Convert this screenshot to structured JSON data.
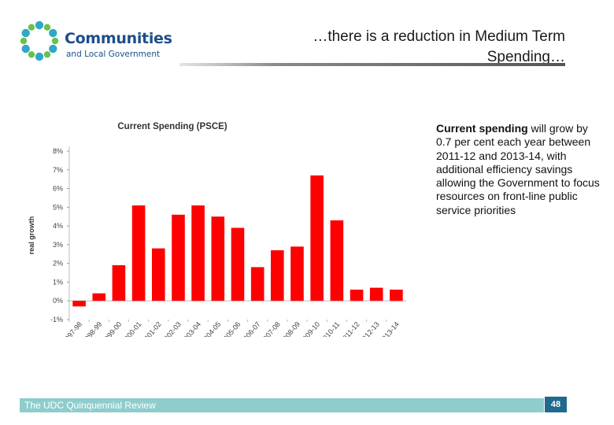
{
  "logo": {
    "title": "Communities",
    "subtitle": "and Local Government",
    "dot_colors": [
      "#2fa8c8",
      "#6cc04a"
    ]
  },
  "heading": {
    "line1": "…there is a reduction in Medium Term",
    "line2": "Spending…"
  },
  "side_text": {
    "lead": "Current spending",
    "body": " will grow by 0.7 per cent each year between 2011-12 and 2013-14, with additional efficiency savings allowing the Government to focus resources on front-line public service priorities"
  },
  "footer": {
    "label": "The UDC Quinquennial Review",
    "page_number": "48",
    "bar_color": "#8fcdcc",
    "page_box_color": "#1f6b8e"
  },
  "chart_data": {
    "type": "bar",
    "title": "Current Spending (PSCE)",
    "ylabel": "real growth",
    "xlabel": "",
    "bar_color": "#ff0000",
    "ylim": [
      -1,
      8
    ],
    "y_tick_labels": [
      "-1%",
      "0%",
      "1%",
      "2%",
      "3%",
      "4%",
      "5%",
      "6%",
      "7%",
      "8%"
    ],
    "categories": [
      "1997-98",
      "1998-99",
      "1999-00",
      "2000-01",
      "2001-02",
      "2002-03",
      "2003-04",
      "2004-05",
      "2005-06",
      "2006-07",
      "2007-08",
      "2008-09",
      "2009-10",
      "2010-11",
      "2011-12",
      "2012-13",
      "2013-14"
    ],
    "values": [
      -0.3,
      0.4,
      1.9,
      5.1,
      2.8,
      4.6,
      5.1,
      4.5,
      3.9,
      1.8,
      2.7,
      2.9,
      6.7,
      4.3,
      0.6,
      0.7,
      0.6
    ]
  }
}
